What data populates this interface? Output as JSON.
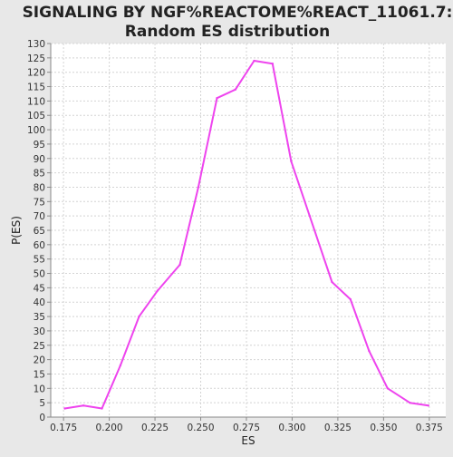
{
  "chart_data": {
    "type": "line",
    "title_line1": "SIGNALING BY NGF%REACTOME%REACT_11061.7:",
    "title_line2": "Random ES distribution",
    "xlabel": "ES",
    "ylabel": "P(ES)",
    "xlim": [
      0.168,
      0.384
    ],
    "ylim": [
      0,
      130
    ],
    "x_ticks": [
      "0.175",
      "0.200",
      "0.225",
      "0.250",
      "0.275",
      "0.300",
      "0.325",
      "0.350",
      "0.375"
    ],
    "y_ticks": [
      "0",
      "5",
      "10",
      "15",
      "20",
      "25",
      "30",
      "35",
      "40",
      "45",
      "50",
      "55",
      "60",
      "65",
      "70",
      "75",
      "80",
      "85",
      "90",
      "95",
      "100",
      "105",
      "110",
      "115",
      "120",
      "125",
      "130"
    ],
    "grid": true,
    "line_color": "#ee44ee",
    "series": [
      {
        "x": [
          0.1757,
          0.1859,
          0.196,
          0.2061,
          0.2163,
          0.2264,
          0.2386,
          0.2487,
          0.2589,
          0.269,
          0.2792,
          0.2893,
          0.2995,
          0.3096,
          0.3218,
          0.3319,
          0.3421,
          0.3522,
          0.3644,
          0.3745
        ],
        "y": [
          3,
          4,
          3,
          18,
          35,
          44,
          53,
          80,
          111,
          114,
          124,
          123,
          89,
          70,
          47,
          41,
          23,
          10,
          5,
          4
        ]
      }
    ]
  }
}
